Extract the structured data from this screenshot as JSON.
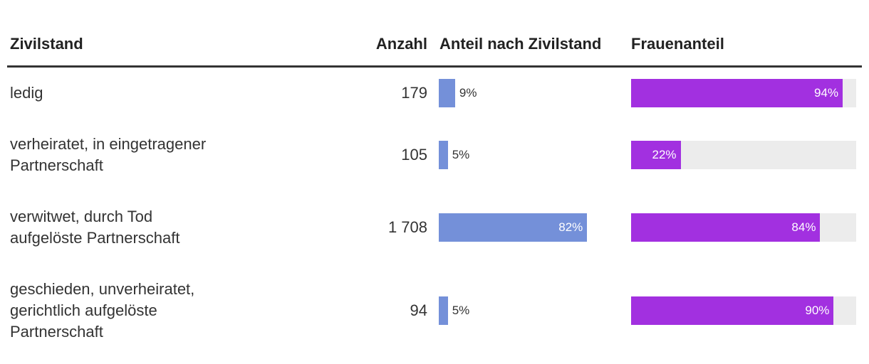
{
  "table": {
    "columns": [
      "Zivilstand",
      "Anzahl",
      "Anteil nach Zivilstand",
      "Frauenanteil"
    ],
    "rows": [
      {
        "zivilstand": [
          "ledig"
        ],
        "anzahl": "179",
        "anteil": 9,
        "anteil_label": "9%",
        "frauen": 94,
        "frauen_label": "94%"
      },
      {
        "zivilstand": [
          "verheiratet, in eingetragener",
          "Partnerschaft"
        ],
        "anzahl": "105",
        "anteil": 5,
        "anteil_label": "5%",
        "frauen": 22,
        "frauen_label": "22%"
      },
      {
        "zivilstand": [
          "verwitwet, durch Tod",
          "aufgelöste Partnerschaft"
        ],
        "anzahl": "1 708",
        "anteil": 82,
        "anteil_label": "82%",
        "frauen": 84,
        "frauen_label": "84%"
      },
      {
        "zivilstand": [
          "geschieden, unverheiratet,",
          "gerichtlich aufgelöste",
          "Partnerschaft"
        ],
        "anzahl": "94",
        "anteil": 5,
        "anteil_label": "5%",
        "frauen": 90,
        "frauen_label": "90%"
      }
    ],
    "anteil_color": "#7490d9",
    "frauen_color": "#a230e0",
    "track_color": "#ececec"
  }
}
